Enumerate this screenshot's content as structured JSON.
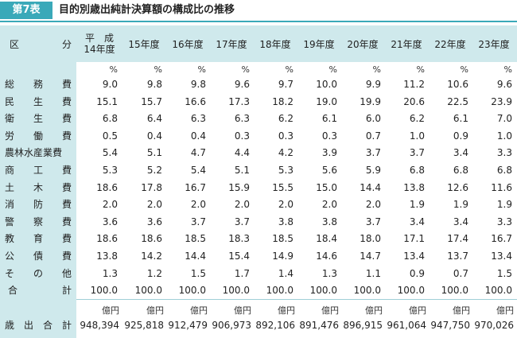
{
  "header": {
    "badge": "第7表",
    "title": "目的別歳出純計決算額の構成比の推移"
  },
  "table": {
    "col_head_first_left": "区",
    "col_head_first_right": "分",
    "year_heads": [
      "平　成\n14年度",
      "15年度",
      "16年度",
      "17年度",
      "18年度",
      "19年度",
      "20年度",
      "21年度",
      "22年度",
      "23年度"
    ],
    "unit_percent": "%",
    "rows": [
      {
        "label": [
          "総",
          "務",
          "費"
        ],
        "values": [
          "9.0",
          "9.8",
          "9.8",
          "9.6",
          "9.7",
          "10.0",
          "9.9",
          "11.2",
          "10.6",
          "9.6"
        ]
      },
      {
        "label": [
          "民",
          "生",
          "費"
        ],
        "values": [
          "15.1",
          "15.7",
          "16.6",
          "17.3",
          "18.2",
          "19.0",
          "19.9",
          "20.6",
          "22.5",
          "23.9"
        ]
      },
      {
        "label": [
          "衛",
          "生",
          "費"
        ],
        "values": [
          "6.8",
          "6.4",
          "6.3",
          "6.3",
          "6.2",
          "6.1",
          "6.0",
          "6.2",
          "6.1",
          "7.0"
        ]
      },
      {
        "label": [
          "労",
          "働",
          "費"
        ],
        "values": [
          "0.5",
          "0.4",
          "0.4",
          "0.3",
          "0.3",
          "0.3",
          "0.7",
          "1.0",
          "0.9",
          "1.0"
        ]
      },
      {
        "label": [
          "農林水産業費"
        ],
        "values": [
          "5.4",
          "5.1",
          "4.7",
          "4.4",
          "4.2",
          "3.9",
          "3.7",
          "3.7",
          "3.4",
          "3.3"
        ]
      },
      {
        "label": [
          "商",
          "工",
          "費"
        ],
        "values": [
          "5.3",
          "5.2",
          "5.4",
          "5.1",
          "5.3",
          "5.6",
          "5.9",
          "6.8",
          "6.8",
          "6.8"
        ]
      },
      {
        "label": [
          "土",
          "木",
          "費"
        ],
        "values": [
          "18.6",
          "17.8",
          "16.7",
          "15.9",
          "15.5",
          "15.0",
          "14.4",
          "13.8",
          "12.6",
          "11.6"
        ]
      },
      {
        "label": [
          "消",
          "防",
          "費"
        ],
        "values": [
          "2.0",
          "2.0",
          "2.0",
          "2.0",
          "2.0",
          "2.0",
          "2.0",
          "1.9",
          "1.9",
          "1.9"
        ]
      },
      {
        "label": [
          "警",
          "察",
          "費"
        ],
        "values": [
          "3.6",
          "3.6",
          "3.7",
          "3.7",
          "3.8",
          "3.8",
          "3.7",
          "3.4",
          "3.4",
          "3.3"
        ]
      },
      {
        "label": [
          "教",
          "育",
          "費"
        ],
        "values": [
          "18.6",
          "18.6",
          "18.5",
          "18.3",
          "18.5",
          "18.4",
          "18.0",
          "17.1",
          "17.4",
          "16.7"
        ]
      },
      {
        "label": [
          "公",
          "債",
          "費"
        ],
        "values": [
          "13.8",
          "14.2",
          "14.4",
          "15.4",
          "14.9",
          "14.6",
          "14.7",
          "13.4",
          "13.7",
          "13.4"
        ]
      },
      {
        "label": [
          "そ",
          "の",
          "他"
        ],
        "values": [
          "1.3",
          "1.2",
          "1.5",
          "1.7",
          "1.4",
          "1.3",
          "1.1",
          "0.9",
          "0.7",
          "1.5"
        ]
      },
      {
        "label": [
          "合",
          "計"
        ],
        "values": [
          "100.0",
          "100.0",
          "100.0",
          "100.0",
          "100.0",
          "100.0",
          "100.0",
          "100.0",
          "100.0",
          "100.0"
        ]
      }
    ],
    "total_unit": "億円",
    "total_row": {
      "label": [
        "歳",
        "出",
        "合",
        "計"
      ],
      "values": [
        "948,394",
        "925,818",
        "912,479",
        "906,973",
        "892,106",
        "891,476",
        "896,915",
        "961,064",
        "947,750",
        "970,026"
      ]
    }
  }
}
